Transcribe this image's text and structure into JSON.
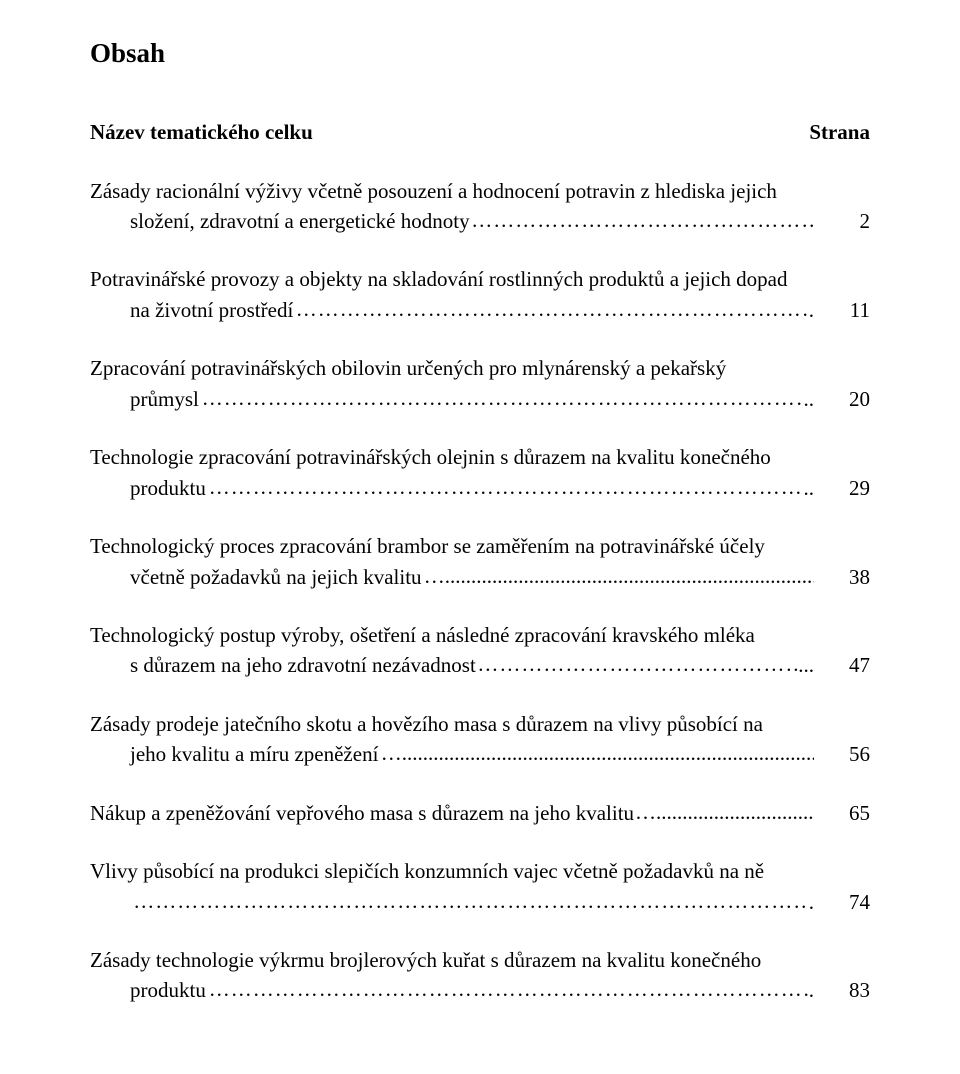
{
  "title": "Obsah",
  "header": {
    "left": "Název tematického celku",
    "right": "Strana"
  },
  "entries": [
    {
      "first_lines": [
        "Zásady racionální výživy včetně posouzení a hodnocení potravin z hlediska jejich"
      ],
      "last_line_text": "složení, zdravotní a energetické hodnoty",
      "indent_last": true,
      "leader_style": "ellipsis",
      "page": "2"
    },
    {
      "first_lines": [
        "Potravinářské provozy a objekty na skladování rostlinných produktů a jejich dopad"
      ],
      "last_line_text": "na životní prostředí",
      "indent_last": true,
      "leader_style": "ellipsis",
      "trailing": ".",
      "page": "11"
    },
    {
      "first_lines": [
        "Zpracování potravinářských obilovin určených pro mlynárenský a pekařský"
      ],
      "last_line_text": "průmysl",
      "indent_last": true,
      "leader_style": "ellipsis",
      "trailing": "..",
      "page": "20"
    },
    {
      "first_lines": [
        "Technologie zpracování potravinářských olejnin s důrazem na kvalitu konečného"
      ],
      "last_line_text": "produktu",
      "indent_last": true,
      "leader_style": "ellipsis",
      "trailing": "..",
      "page": "29"
    },
    {
      "first_lines": [
        "Technologický proces zpracování brambor se zaměřením na potravinářské účely"
      ],
      "last_line_text": "včetně požadavků na jejich kvalitu",
      "indent_last": true,
      "leader_style": "mixed",
      "page": "38"
    },
    {
      "first_lines": [
        "Technologický postup výroby, ošetření a následné zpracování kravského mléka"
      ],
      "last_line_text": "s důrazem na jeho zdravotní nezávadnost",
      "indent_last": true,
      "leader_style": "ellipsis",
      "trailing": "...",
      "page": "47"
    },
    {
      "first_lines": [
        "Zásady prodeje jatečního skotu a hovězího masa s důrazem na vlivy působící na"
      ],
      "last_line_text": "jeho kvalitu a míru zpeněžení",
      "indent_last": true,
      "leader_style": "mixed",
      "page": "56"
    },
    {
      "first_lines": [],
      "last_line_text": "Nákup a zpeněžování vepřového masa s důrazem na jeho kvalitu",
      "indent_last": false,
      "leader_style": "mixed",
      "page": "65"
    },
    {
      "first_lines": [
        "Vlivy působící na produkci slepičích konzumních vajec včetně požadavků na ně"
      ],
      "last_line_text": "",
      "indent_last": true,
      "leader_style": "ellipsis",
      "trailing": ".",
      "page": "74"
    },
    {
      "first_lines": [
        "Zásady technologie výkrmu brojlerových kuřat s důrazem na kvalitu konečného"
      ],
      "last_line_text": "produktu",
      "indent_last": true,
      "leader_style": "ellipsis",
      "trailing": ".",
      "page": "83"
    }
  ]
}
